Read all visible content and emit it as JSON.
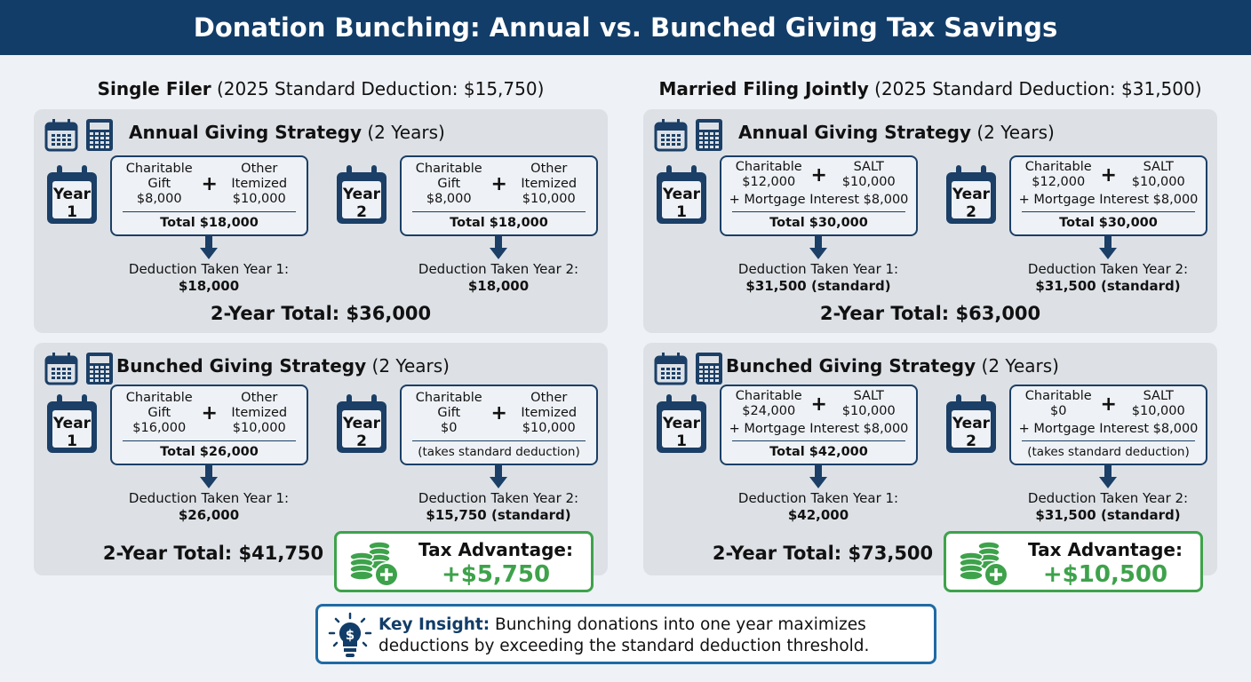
{
  "title": "Donation Bunching: Annual vs. Bunched Giving Tax Savings",
  "colors": {
    "navy": "#123d68",
    "green": "#3ea24b",
    "panel": "#dde1e6"
  },
  "columns": [
    {
      "filer": "Single Filer",
      "filer_sub": "(2025 Standard Deduction: $15,750)",
      "annual": {
        "title": "Annual Giving Strategy",
        "sub": "(2 Years)",
        "total": "2-Year Total: $36,000",
        "years": [
          {
            "label": "Year",
            "num": "1",
            "left": "Charitable\nGift\n$8,000",
            "right": "Other\nItemized\n$10,000",
            "extra": "",
            "total": "Total $18,000",
            "ded_label": "Deduction Taken Year 1:",
            "ded_value": "$18,000"
          },
          {
            "label": "Year",
            "num": "2",
            "left": "Charitable\nGift\n$8,000",
            "right": "Other\nItemized\n$10,000",
            "extra": "",
            "total": "Total $18,000",
            "ded_label": "Deduction Taken Year 2:",
            "ded_value": "$18,000"
          }
        ]
      },
      "bunched": {
        "title": "Bunched Giving Strategy",
        "sub": "(2 Years)",
        "total": "2-Year Total: $41,750",
        "years": [
          {
            "label": "Year",
            "num": "1",
            "left": "Charitable\nGift\n$16,000",
            "right": "Other\nItemized\n$10,000",
            "extra": "",
            "total": "Total $26,000",
            "ded_label": "Deduction Taken Year 1:",
            "ded_value": "$26,000"
          },
          {
            "label": "Year",
            "num": "2",
            "left": "Charitable\nGift\n$0",
            "right": "Other\nItemized\n$10,000",
            "extra": "",
            "total": "(takes standard deduction)",
            "ded_label": "Deduction Taken Year 2:",
            "ded_value": "$15,750 (standard)"
          }
        ],
        "advantage_label": "Tax Advantage:",
        "advantage_value": "+$5,750"
      }
    },
    {
      "filer": "Married Filing Jointly",
      "filer_sub": "(2025 Standard Deduction: $31,500)",
      "annual": {
        "title": "Annual Giving Strategy",
        "sub": "(2 Years)",
        "total": "2-Year Total: $63,000",
        "years": [
          {
            "label": "Year",
            "num": "1",
            "left": "Charitable\n$12,000",
            "right": "SALT\n$10,000",
            "extra": "+ Mortgage Interest $8,000",
            "total": "Total $30,000",
            "ded_label": "Deduction Taken Year 1:",
            "ded_value": "$31,500 (standard)"
          },
          {
            "label": "Year",
            "num": "2",
            "left": "Charitable\n$12,000",
            "right": "SALT\n$10,000",
            "extra": "+ Mortgage Interest $8,000",
            "total": "Total $30,000",
            "ded_label": "Deduction Taken Year 2:",
            "ded_value": "$31,500 (standard)"
          }
        ]
      },
      "bunched": {
        "title": "Bunched Giving Strategy",
        "sub": "(2 Years)",
        "total": "2-Year Total: $73,500",
        "years": [
          {
            "label": "Year",
            "num": "1",
            "left": "Charitable\n$24,000",
            "right": "SALT\n$10,000",
            "extra": "+ Mortgage Interest $8,000",
            "total": "Total $42,000",
            "ded_label": "Deduction Taken Year 1:",
            "ded_value": "$42,000"
          },
          {
            "label": "Year",
            "num": "2",
            "left": "Charitable\n$0",
            "right": "SALT\n$10,000",
            "extra": "+ Mortgage Interest $8,000",
            "total": "(takes standard deduction)",
            "ded_label": "Deduction Taken Year 2:",
            "ded_value": "$31,500 (standard)"
          }
        ],
        "advantage_label": "Tax Advantage:",
        "advantage_value": "+$10,500"
      }
    }
  ],
  "insight": {
    "label": "Key Insight:",
    "text": "Bunching donations into one year maximizes deductions by exceeding the standard deduction threshold."
  }
}
